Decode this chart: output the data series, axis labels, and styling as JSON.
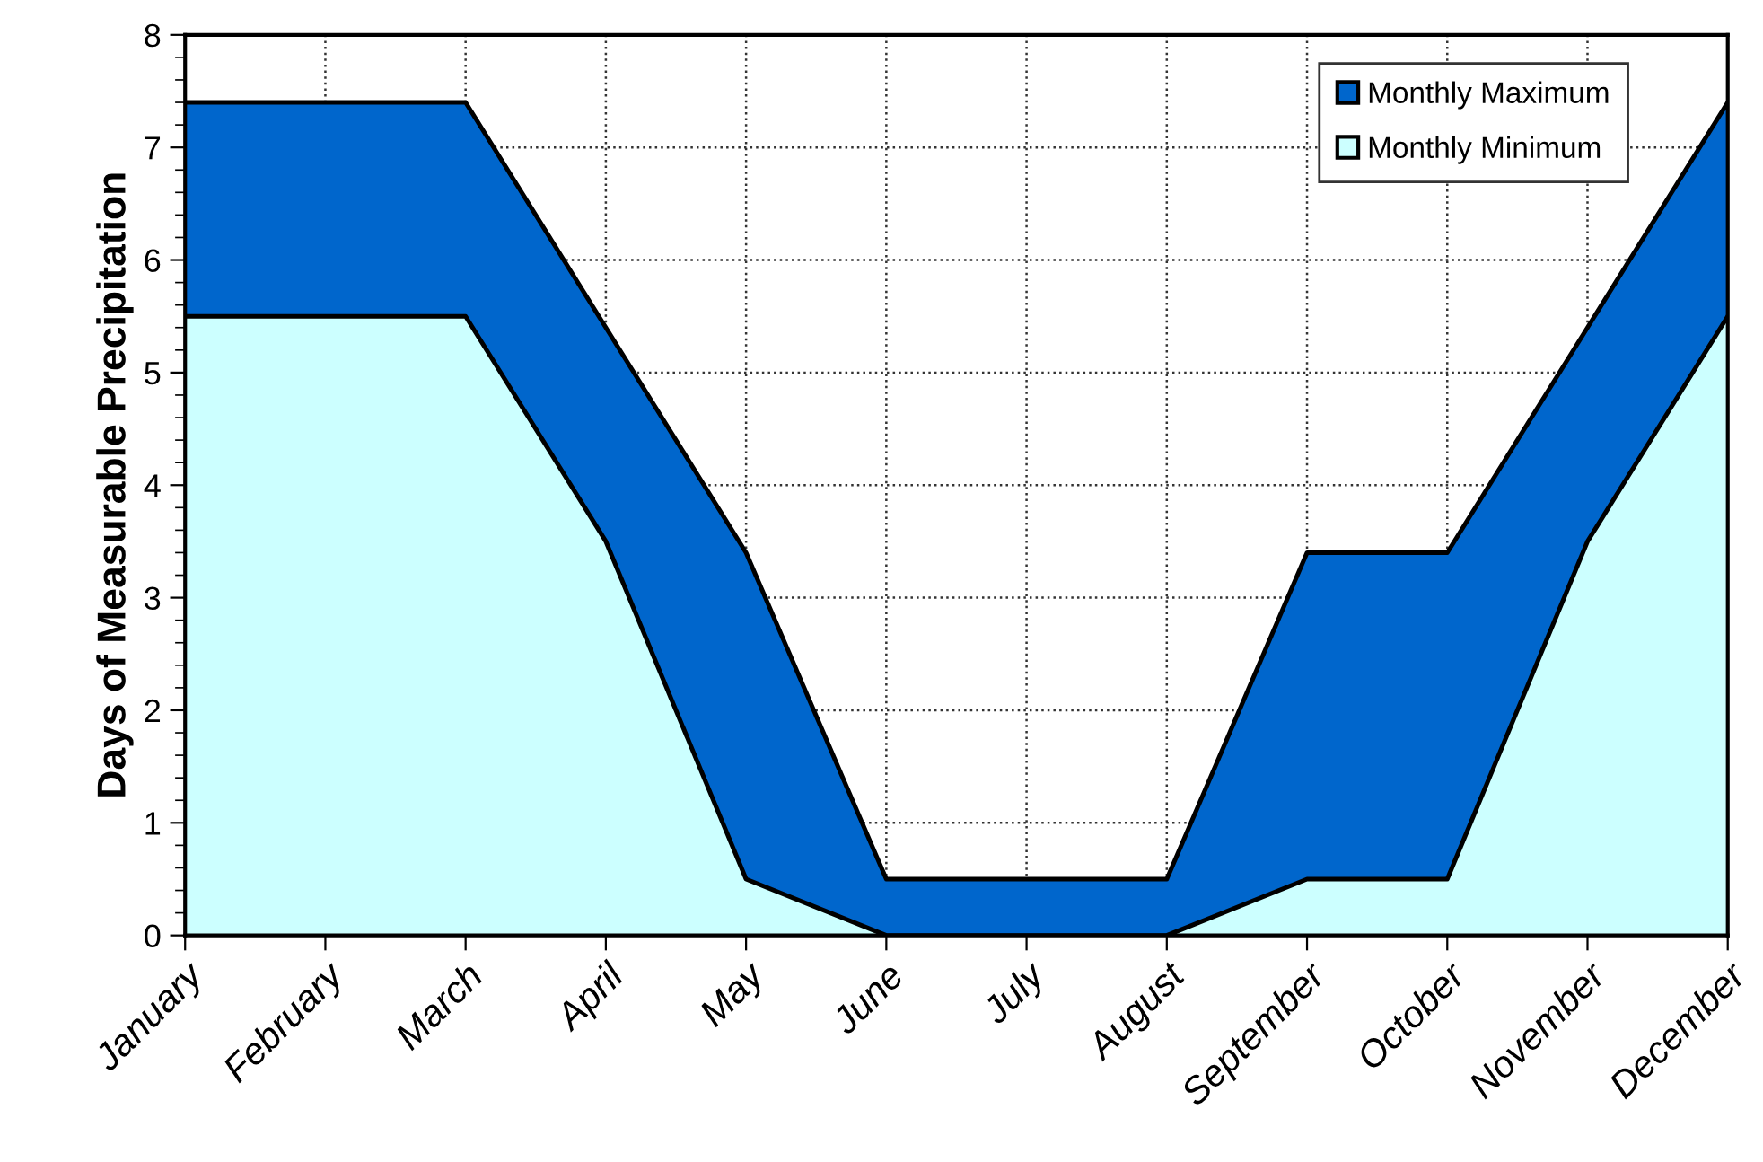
{
  "chart_data": {
    "type": "area",
    "ylabel": "Days of Measurable Precipitation",
    "categories": [
      "January",
      "February",
      "March",
      "April",
      "May",
      "June",
      "July",
      "August",
      "September",
      "October",
      "November",
      "December"
    ],
    "series": [
      {
        "name": "Monthly Maximum",
        "color": "#0066cc",
        "values": [
          7.4,
          7.4,
          7.4,
          5.4,
          3.4,
          0.5,
          0.5,
          0.5,
          3.4,
          3.4,
          5.4,
          7.4
        ]
      },
      {
        "name": "Monthly Minimum",
        "color": "#ccffff",
        "values": [
          5.5,
          5.5,
          5.5,
          3.5,
          0.5,
          0,
          0,
          0,
          0.5,
          0.5,
          3.5,
          5.5
        ]
      }
    ],
    "ylim": [
      0,
      8
    ],
    "yticks": [
      0,
      1,
      2,
      3,
      4,
      5,
      6,
      7,
      8
    ],
    "grid": true,
    "legend": "top right"
  }
}
